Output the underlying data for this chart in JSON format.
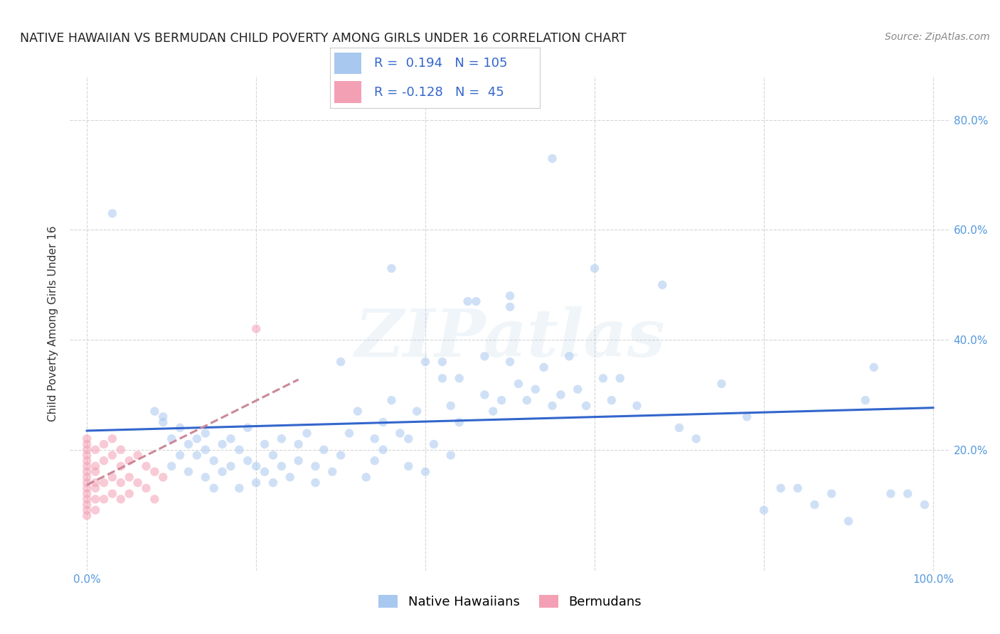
{
  "title": "NATIVE HAWAIIAN VS BERMUDAN CHILD POVERTY AMONG GIRLS UNDER 16 CORRELATION CHART",
  "source": "Source: ZipAtlas.com",
  "ylabel": "Child Poverty Among Girls Under 16",
  "hawaii_R": 0.194,
  "hawaii_N": 105,
  "bermuda_R": -0.128,
  "bermuda_N": 45,
  "hawaii_color": "#a8c8f0",
  "bermuda_color": "#f4a0b4",
  "hawaii_line_color": "#3366cc",
  "bermuda_line_color": "#cc8899",
  "background_color": "#ffffff",
  "grid_color": "#cccccc",
  "title_color": "#222222",
  "axis_tick_color": "#5599dd",
  "legend_text_color": "#3366cc",
  "hawaii_x": [
    0.03,
    0.08,
    0.09,
    0.09,
    0.1,
    0.1,
    0.11,
    0.11,
    0.12,
    0.12,
    0.13,
    0.13,
    0.14,
    0.14,
    0.14,
    0.15,
    0.15,
    0.16,
    0.16,
    0.17,
    0.17,
    0.18,
    0.18,
    0.19,
    0.19,
    0.2,
    0.2,
    0.21,
    0.21,
    0.22,
    0.22,
    0.23,
    0.23,
    0.24,
    0.25,
    0.25,
    0.26,
    0.27,
    0.27,
    0.28,
    0.29,
    0.3,
    0.3,
    0.31,
    0.32,
    0.33,
    0.34,
    0.34,
    0.35,
    0.35,
    0.36,
    0.37,
    0.38,
    0.38,
    0.39,
    0.4,
    0.4,
    0.41,
    0.42,
    0.43,
    0.43,
    0.44,
    0.44,
    0.45,
    0.46,
    0.47,
    0.48,
    0.49,
    0.5,
    0.5,
    0.51,
    0.52,
    0.53,
    0.54,
    0.55,
    0.56,
    0.57,
    0.58,
    0.59,
    0.6,
    0.61,
    0.62,
    0.63,
    0.65,
    0.68,
    0.7,
    0.72,
    0.75,
    0.78,
    0.8,
    0.82,
    0.84,
    0.86,
    0.88,
    0.9,
    0.92,
    0.93,
    0.95,
    0.97,
    0.99,
    0.36,
    0.42,
    0.47,
    0.5,
    0.55
  ],
  "hawaii_y": [
    0.63,
    0.27,
    0.26,
    0.25,
    0.17,
    0.22,
    0.19,
    0.24,
    0.21,
    0.16,
    0.22,
    0.19,
    0.15,
    0.2,
    0.23,
    0.18,
    0.13,
    0.21,
    0.16,
    0.22,
    0.17,
    0.2,
    0.13,
    0.18,
    0.24,
    0.17,
    0.14,
    0.21,
    0.16,
    0.19,
    0.14,
    0.22,
    0.17,
    0.15,
    0.21,
    0.18,
    0.23,
    0.17,
    0.14,
    0.2,
    0.16,
    0.36,
    0.19,
    0.23,
    0.27,
    0.15,
    0.22,
    0.18,
    0.25,
    0.2,
    0.29,
    0.23,
    0.17,
    0.22,
    0.27,
    0.36,
    0.16,
    0.21,
    0.33,
    0.19,
    0.28,
    0.33,
    0.25,
    0.47,
    0.47,
    0.3,
    0.27,
    0.29,
    0.48,
    0.46,
    0.32,
    0.29,
    0.31,
    0.35,
    0.28,
    0.3,
    0.37,
    0.31,
    0.28,
    0.53,
    0.33,
    0.29,
    0.33,
    0.28,
    0.5,
    0.24,
    0.22,
    0.32,
    0.26,
    0.09,
    0.13,
    0.13,
    0.1,
    0.12,
    0.07,
    0.29,
    0.35,
    0.12,
    0.12,
    0.1,
    0.53,
    0.36,
    0.37,
    0.36,
    0.73
  ],
  "bermuda_x": [
    0.0,
    0.0,
    0.0,
    0.0,
    0.0,
    0.0,
    0.0,
    0.0,
    0.0,
    0.0,
    0.0,
    0.0,
    0.0,
    0.0,
    0.0,
    0.01,
    0.01,
    0.01,
    0.01,
    0.01,
    0.01,
    0.01,
    0.02,
    0.02,
    0.02,
    0.02,
    0.03,
    0.03,
    0.03,
    0.03,
    0.04,
    0.04,
    0.04,
    0.04,
    0.05,
    0.05,
    0.05,
    0.06,
    0.06,
    0.07,
    0.07,
    0.08,
    0.08,
    0.09,
    0.2
  ],
  "bermuda_y": [
    0.15,
    0.1,
    0.12,
    0.14,
    0.08,
    0.17,
    0.2,
    0.18,
    0.16,
    0.13,
    0.11,
    0.19,
    0.21,
    0.09,
    0.22,
    0.14,
    0.17,
    0.11,
    0.2,
    0.13,
    0.16,
    0.09,
    0.14,
    0.18,
    0.11,
    0.21,
    0.15,
    0.12,
    0.19,
    0.22,
    0.14,
    0.17,
    0.11,
    0.2,
    0.15,
    0.12,
    0.18,
    0.14,
    0.19,
    0.13,
    0.17,
    0.16,
    0.11,
    0.15,
    0.42
  ],
  "xlim": [
    -0.02,
    1.02
  ],
  "ylim": [
    -0.02,
    0.88
  ],
  "xtick_positions": [
    0.0,
    0.2,
    0.4,
    0.6,
    0.8,
    1.0
  ],
  "xtick_labels": [
    "0.0%",
    "",
    "",
    "",
    "",
    "100.0%"
  ],
  "ytick_positions": [
    0.2,
    0.4,
    0.6,
    0.8
  ],
  "ytick_labels": [
    "20.0%",
    "40.0%",
    "60.0%",
    "80.0%"
  ],
  "marker_size": 80,
  "marker_alpha": 0.55,
  "line_width": 2.2,
  "watermark_text": "ZIPatlas",
  "watermark_alpha": 0.18,
  "title_fontsize": 12.5,
  "label_fontsize": 11,
  "tick_fontsize": 11,
  "source_fontsize": 10,
  "legend_fontsize": 13
}
